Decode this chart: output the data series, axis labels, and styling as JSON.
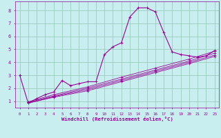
{
  "xlabel": "Windchill (Refroidissement éolien,°C)",
  "bg_color": "#c8eef0",
  "line_color": "#990099",
  "grid_color": "#99ccbb",
  "x_ticks": [
    0,
    1,
    2,
    3,
    4,
    5,
    6,
    7,
    8,
    9,
    10,
    11,
    12,
    13,
    14,
    15,
    16,
    17,
    18,
    19,
    20,
    21,
    22,
    23
  ],
  "y_ticks": [
    1,
    2,
    3,
    4,
    5,
    6,
    7,
    8
  ],
  "xlim": [
    -0.5,
    23.5
  ],
  "ylim": [
    0.5,
    8.7
  ],
  "series": [
    [
      0,
      3.0
    ],
    [
      1,
      0.85
    ],
    [
      2,
      1.2
    ],
    [
      3,
      1.5
    ],
    [
      4,
      1.7
    ],
    [
      5,
      2.6
    ],
    [
      6,
      2.2
    ],
    [
      7,
      2.35
    ],
    [
      8,
      2.5
    ],
    [
      9,
      2.5
    ],
    [
      10,
      4.6
    ],
    [
      11,
      5.2
    ],
    [
      12,
      5.5
    ],
    [
      13,
      7.5
    ],
    [
      14,
      8.2
    ],
    [
      15,
      8.2
    ],
    [
      16,
      7.9
    ],
    [
      17,
      6.3
    ],
    [
      18,
      4.8
    ],
    [
      19,
      4.6
    ],
    [
      20,
      4.5
    ],
    [
      21,
      4.4
    ],
    [
      22,
      4.5
    ],
    [
      23,
      4.9
    ]
  ],
  "linear_series": [
    [
      [
        1,
        0.85
      ],
      [
        4,
        1.3
      ],
      [
        8,
        1.8
      ],
      [
        12,
        2.5
      ],
      [
        16,
        3.2
      ],
      [
        20,
        3.9
      ],
      [
        23,
        4.45
      ]
    ],
    [
      [
        1,
        0.85
      ],
      [
        4,
        1.35
      ],
      [
        8,
        1.9
      ],
      [
        12,
        2.6
      ],
      [
        16,
        3.3
      ],
      [
        20,
        4.0
      ],
      [
        23,
        4.55
      ]
    ],
    [
      [
        1,
        0.9
      ],
      [
        4,
        1.4
      ],
      [
        8,
        2.0
      ],
      [
        12,
        2.7
      ],
      [
        16,
        3.4
      ],
      [
        20,
        4.1
      ],
      [
        23,
        4.7
      ]
    ],
    [
      [
        1,
        0.95
      ],
      [
        4,
        1.5
      ],
      [
        8,
        2.1
      ],
      [
        12,
        2.85
      ],
      [
        16,
        3.55
      ],
      [
        20,
        4.25
      ],
      [
        23,
        4.85
      ]
    ]
  ]
}
